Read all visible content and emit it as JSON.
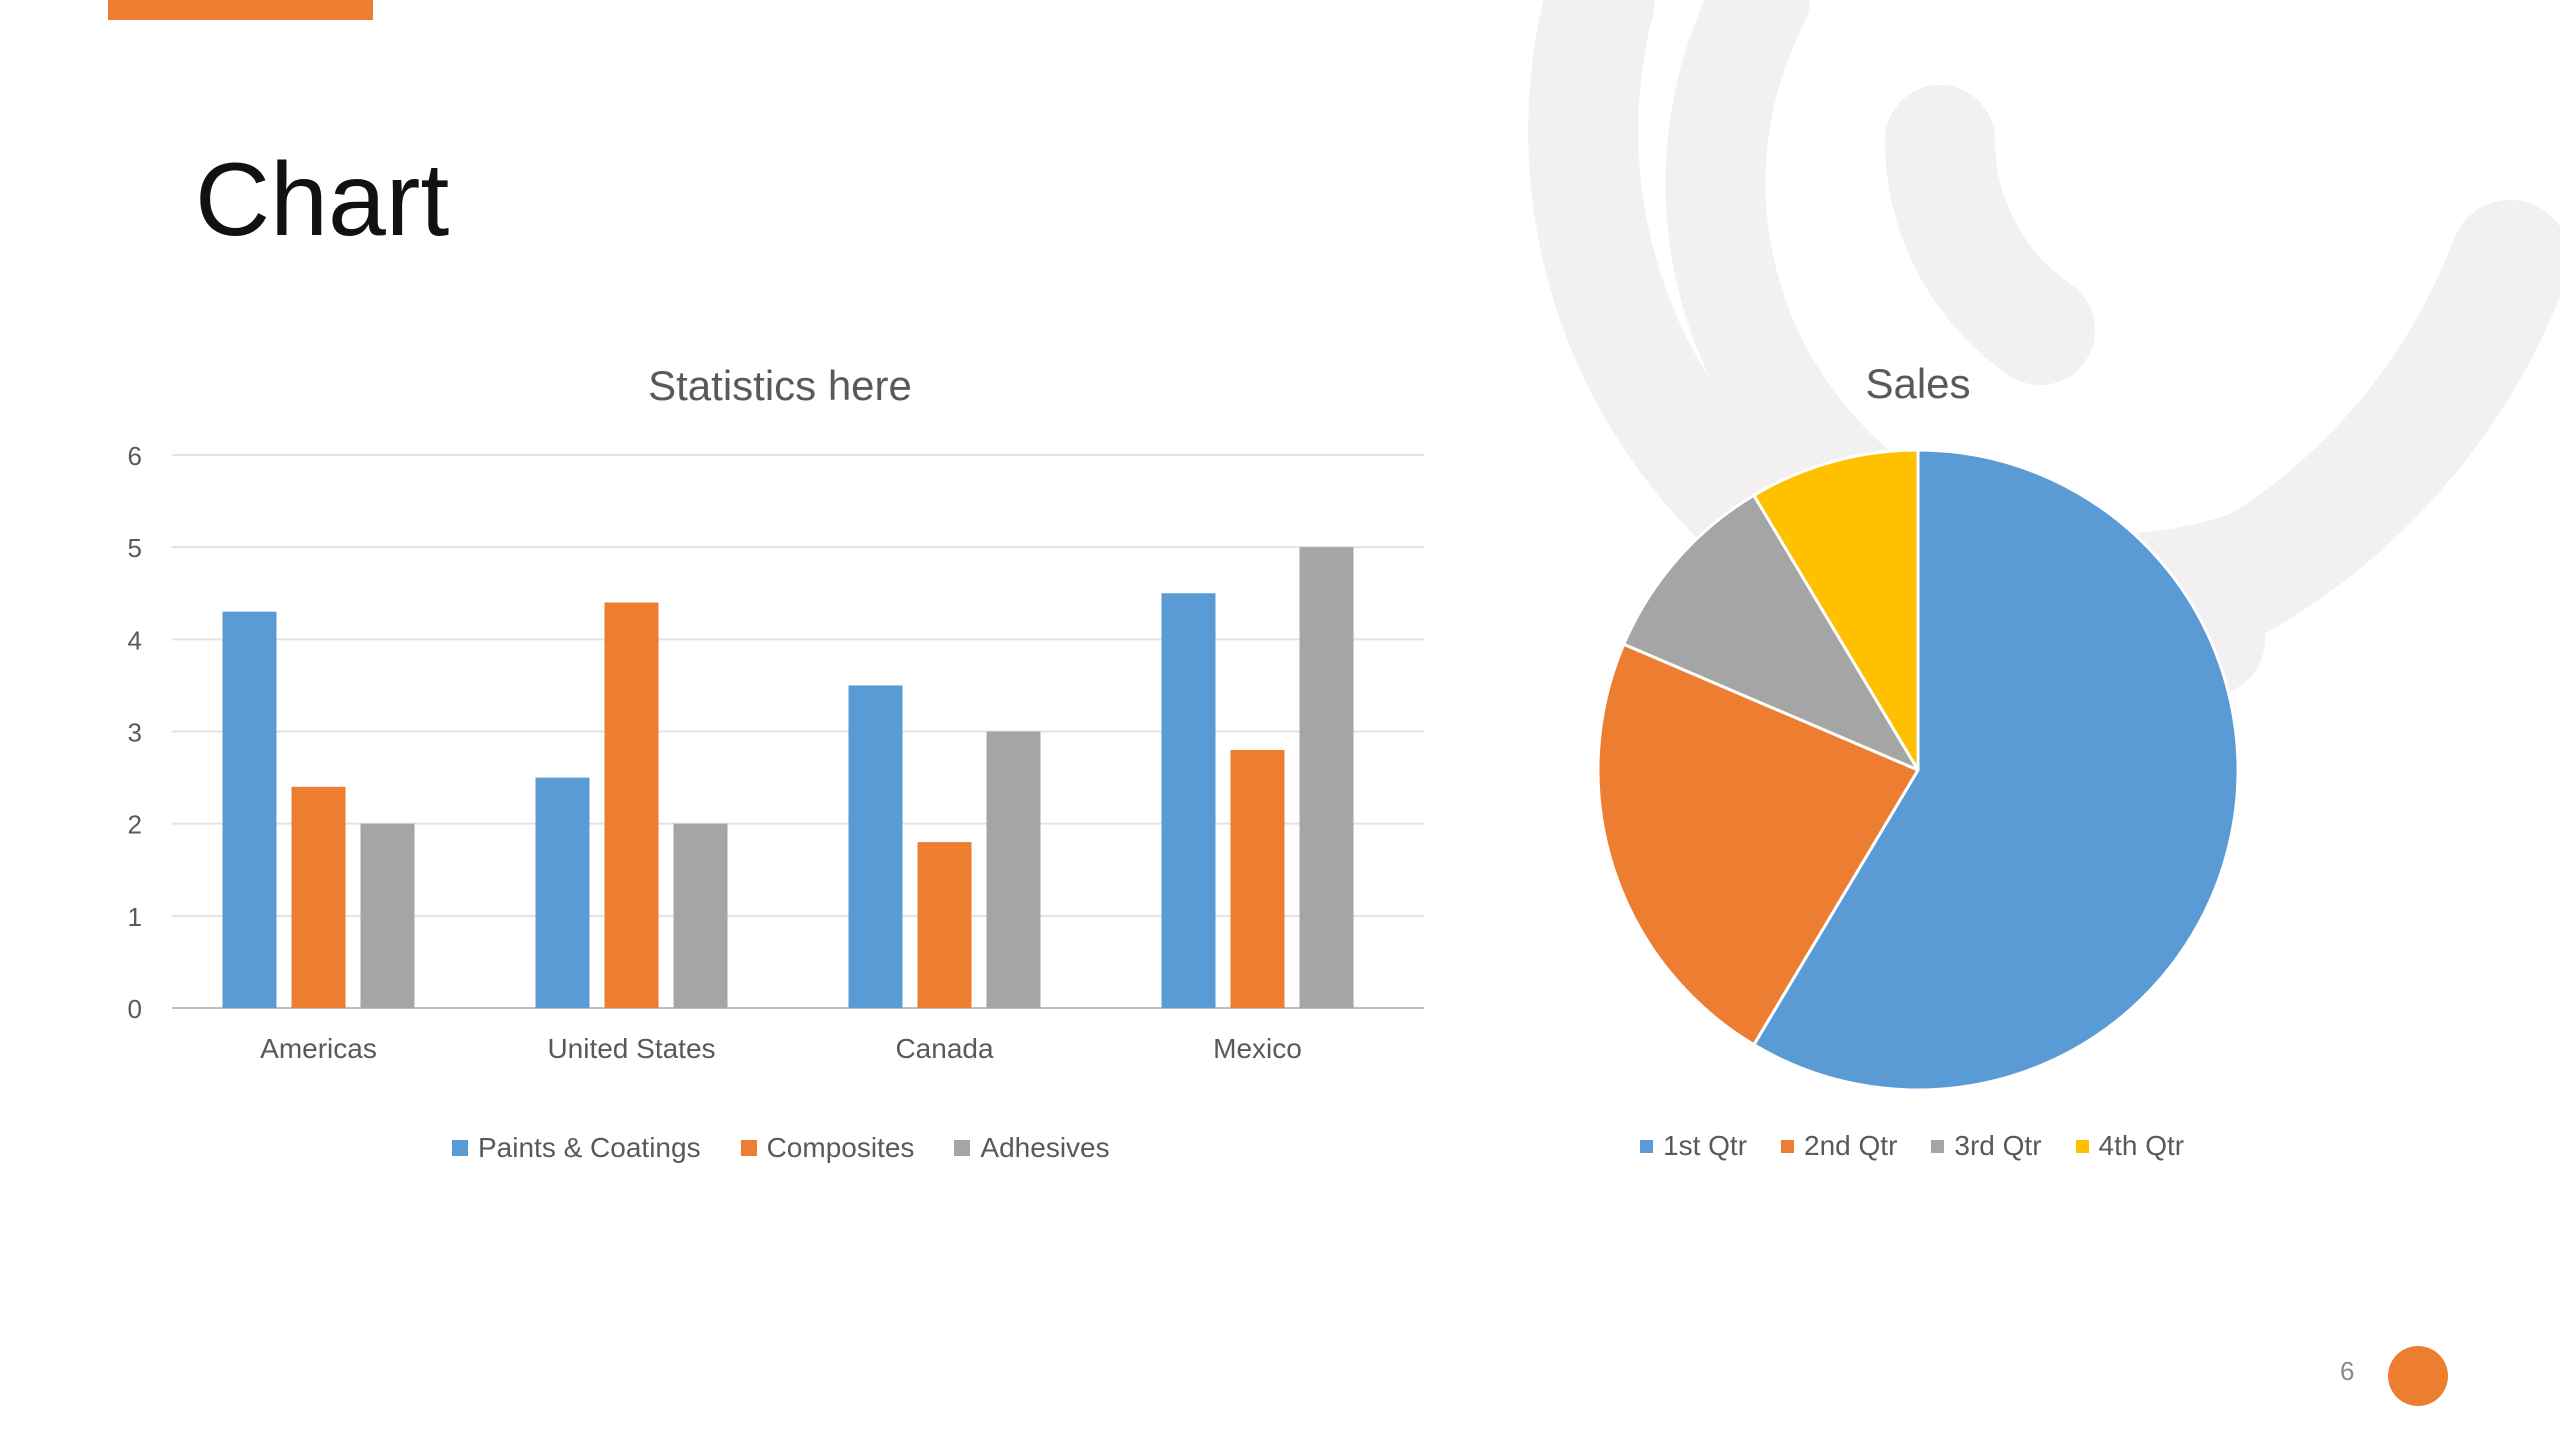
{
  "slide": {
    "title": "Chart",
    "page_number": "6",
    "accent_color": "#ED7D31"
  },
  "chart_data": [
    {
      "type": "bar",
      "title": "Statistics here",
      "categories": [
        "Americas",
        "United States",
        "Canada",
        "Mexico"
      ],
      "series": [
        {
          "name": "Paints & Coatings",
          "values": [
            4.3,
            2.5,
            3.5,
            4.5
          ],
          "color": "#5B9BD5"
        },
        {
          "name": "Composites",
          "values": [
            2.4,
            4.4,
            1.8,
            2.8
          ],
          "color": "#ED7D31"
        },
        {
          "name": "Adhesives",
          "values": [
            2,
            2,
            3,
            5
          ],
          "color": "#A5A5A5"
        }
      ],
      "ylim": [
        0,
        6
      ],
      "yticks": [
        "0",
        "1",
        "2",
        "3",
        "4",
        "5",
        "6"
      ],
      "grid": true,
      "legend_position": "bottom"
    },
    {
      "type": "pie",
      "title": "Sales",
      "labels": [
        "1st Qtr",
        "2nd Qtr",
        "3rd Qtr",
        "4th Qtr"
      ],
      "values": [
        8.2,
        3.2,
        1.4,
        1.2
      ],
      "colors": [
        "#5B9BD5",
        "#ED7D31",
        "#A5A5A5",
        "#FFC000"
      ],
      "legend_position": "bottom"
    }
  ]
}
